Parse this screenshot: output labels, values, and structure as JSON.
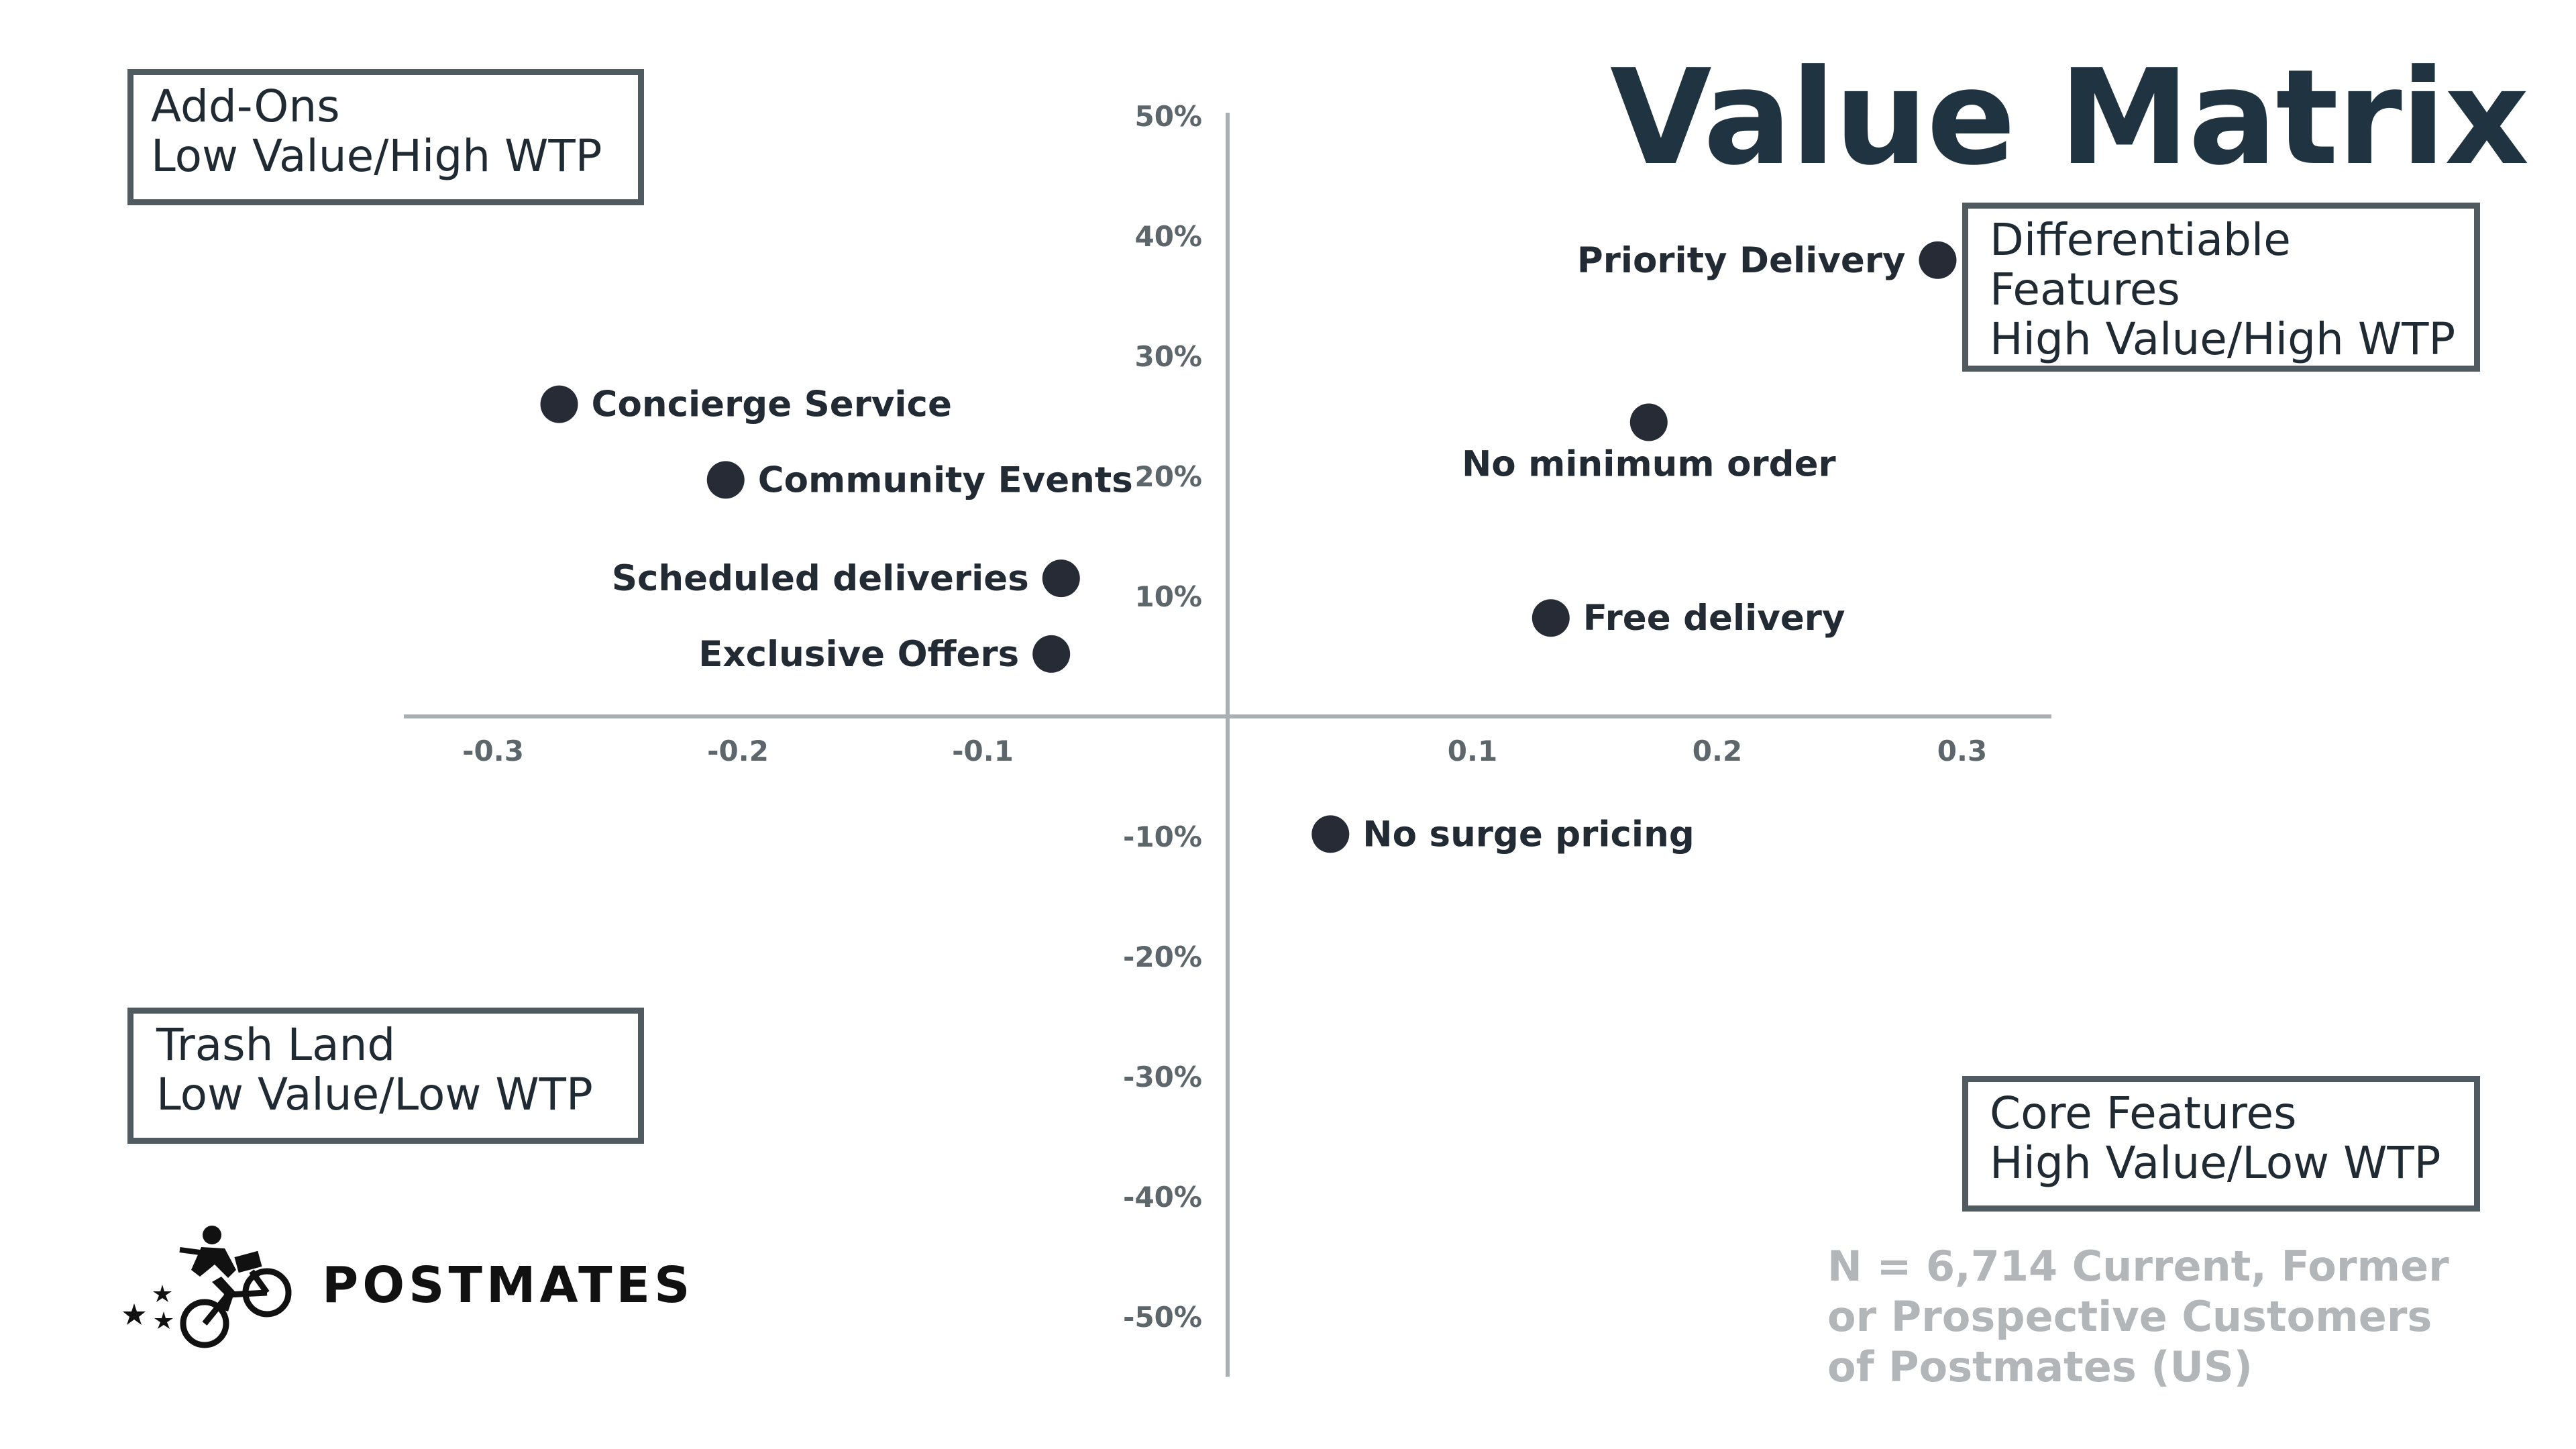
{
  "title": "Value Matrix",
  "quadrants": {
    "top_left": [
      "Add-Ons",
      "Low Value/High WTP"
    ],
    "top_right": [
      "Differentiable",
      "Features",
      "High Value/High WTP"
    ],
    "bottom_left": [
      "Trash Land",
      "Low Value/Low WTP"
    ],
    "bottom_right": [
      "Core Features",
      "High Value/Low WTP"
    ]
  },
  "note": [
    "N = 6,714 Current, Former",
    "or Prospective Customers",
    "of Postmates (US)"
  ],
  "brand": {
    "name": "POSTMATES",
    "logo_icon": "bike-courier-icon"
  },
  "colors": {
    "title": "#1f3440",
    "point": "#262b36",
    "axis": "#a9b0b3",
    "note": "#b2b6b8",
    "box_border": "#4f5b60"
  },
  "chart_data": {
    "type": "scatter",
    "xlim": [
      -0.32,
      0.32
    ],
    "ylim": [
      -0.55,
      0.5
    ],
    "x_ticks": [
      {
        "value": -0.3,
        "label": "-0.3"
      },
      {
        "value": -0.2,
        "label": "-0.2"
      },
      {
        "value": -0.1,
        "label": "-0.1"
      },
      {
        "value": 0.1,
        "label": "0.1"
      },
      {
        "value": 0.2,
        "label": "0.2"
      },
      {
        "value": 0.3,
        "label": "0.3"
      }
    ],
    "y_ticks": [
      {
        "value": 0.5,
        "label": "50%"
      },
      {
        "value": 0.4,
        "label": "40%"
      },
      {
        "value": 0.3,
        "label": "30%"
      },
      {
        "value": 0.2,
        "label": "20%"
      },
      {
        "value": 0.1,
        "label": "10%"
      },
      {
        "value": -0.1,
        "label": "-10%"
      },
      {
        "value": -0.2,
        "label": "-20%"
      },
      {
        "value": -0.3,
        "label": "-30%"
      },
      {
        "value": -0.4,
        "label": "-40%"
      },
      {
        "value": -0.5,
        "label": "-50%"
      }
    ],
    "grid": false,
    "points": [
      {
        "label": "Priority Delivery",
        "x": 0.29,
        "y": 0.38,
        "label_pos": "left"
      },
      {
        "label": "Concierge Service",
        "x": -0.273,
        "y": 0.26,
        "label_pos": "right"
      },
      {
        "label": "No minimum order",
        "x": 0.172,
        "y": 0.245,
        "label_pos": "below"
      },
      {
        "label": "Community Events",
        "x": -0.205,
        "y": 0.197,
        "label_pos": "right"
      },
      {
        "label": "Scheduled deliveries",
        "x": -0.068,
        "y": 0.115,
        "label_pos": "left"
      },
      {
        "label": "Free delivery",
        "x": 0.132,
        "y": 0.082,
        "label_pos": "right"
      },
      {
        "label": "Exclusive Offers",
        "x": -0.072,
        "y": 0.052,
        "label_pos": "left"
      },
      {
        "label": "No surge pricing",
        "x": 0.042,
        "y": -0.098,
        "label_pos": "right"
      }
    ]
  }
}
